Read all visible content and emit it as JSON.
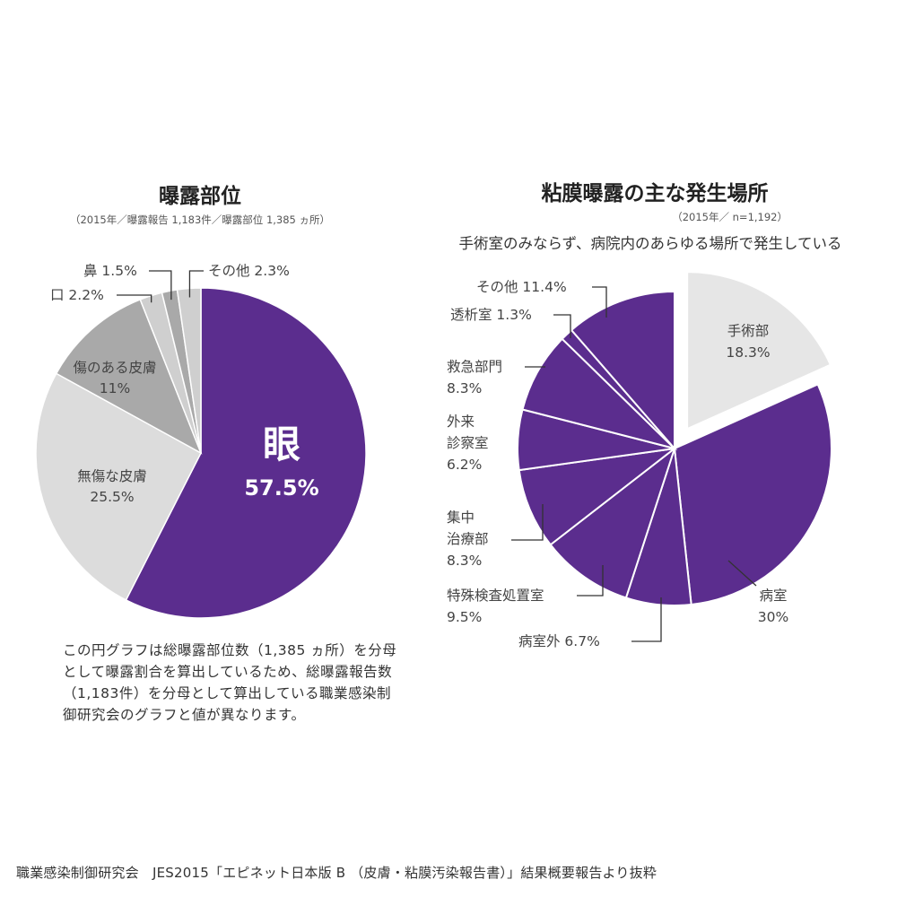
{
  "chart_data": [
    {
      "type": "pie",
      "title": "曝露部位",
      "subtitle": "（2015年／曝露報告 1,183件／曝露部位 1,385 ヵ所）",
      "slices": [
        {
          "label": "眼",
          "value": 57.5,
          "value_label": "57.5%",
          "color": "#5b2d8e",
          "label_color": "#ffffff"
        },
        {
          "label": "無傷な皮膚",
          "value": 25.5,
          "value_label": "25.5%",
          "color": "#dcdcdc",
          "label_color": "#444444"
        },
        {
          "label": "傷のある皮膚",
          "value": 11,
          "value_label": "11%",
          "color": "#a9a9a9",
          "label_color": "#444444"
        },
        {
          "label": "口",
          "value": 2.2,
          "value_label": "2.2%",
          "color": "#cfcfcf",
          "label_color": "#444444"
        },
        {
          "label": "鼻",
          "value": 1.5,
          "value_label": "1.5%",
          "color": "#a9a9a9",
          "label_color": "#444444"
        },
        {
          "label": "その他",
          "value": 2.3,
          "value_label": "2.3%",
          "color": "#cfcfcf",
          "label_color": "#444444"
        }
      ]
    },
    {
      "type": "pie",
      "title": "粘膜曝露の主な発生場所",
      "subtitle": "（2015年／ n=1,192）",
      "annotation": "手術室のみならず、病院内のあらゆる場所で発生している",
      "slices": [
        {
          "label": "手術部",
          "value": 18.3,
          "value_label": "18.3%",
          "color": "#e6e6e6",
          "exploded": true
        },
        {
          "label": "病室",
          "value": 30,
          "value_label": "30%",
          "color": "#5b2d8e"
        },
        {
          "label": "病室外",
          "value": 6.7,
          "value_label": "6.7%",
          "color": "#5b2d8e"
        },
        {
          "label": "特殊検査処置室",
          "value": 9.5,
          "value_label": "9.5%",
          "color": "#5b2d8e"
        },
        {
          "label": "集中治療部",
          "value": 8.3,
          "value_label": "8.3%",
          "color": "#5b2d8e"
        },
        {
          "label": "外来診察室",
          "value": 6.2,
          "value_label": "6.2%",
          "color": "#5b2d8e"
        },
        {
          "label": "救急部門",
          "value": 8.3,
          "value_label": "8.3%",
          "color": "#5b2d8e"
        },
        {
          "label": "透析室",
          "value": 1.3,
          "value_label": "1.3%",
          "color": "#5b2d8e"
        },
        {
          "label": "その他",
          "value": 11.4,
          "value_label": "11.4%",
          "color": "#5b2d8e"
        }
      ]
    }
  ],
  "note": "この円グラフは総曝露部位数（1,385 ヵ所）を分母として曝露割合を算出しているため、総曝露報告数（1,183件）を分母として算出している職業感染制御研究会のグラフと値が異なります。",
  "source": "職業感染制御研究会　JES2015「エピネット日本版 B （皮膚・粘膜汚染報告書）」結果概要報告より抜粋"
}
